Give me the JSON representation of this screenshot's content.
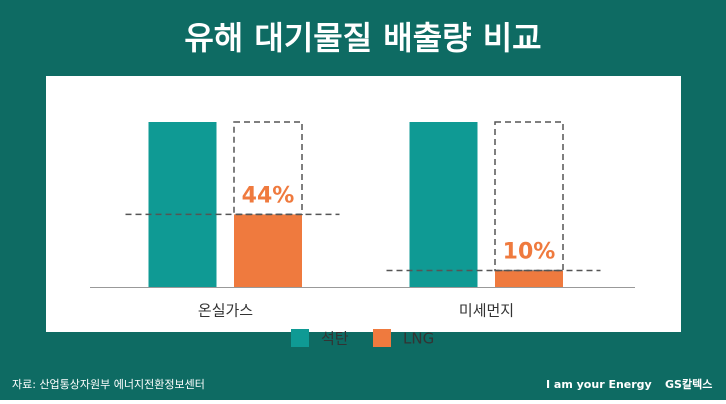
{
  "chart_data": {
    "type": "bar",
    "title": "유해 대기물질 배출량 비교",
    "categories": [
      "온실가스",
      "미세먼지"
    ],
    "series": [
      {
        "name": "석탄",
        "color": "#0f9a94",
        "values": [
          100,
          100
        ]
      },
      {
        "name": "LNG",
        "color": "#ef7a3e",
        "values": [
          44,
          10
        ],
        "value_labels": [
          "44%",
          "10%"
        ]
      }
    ],
    "ylim": [
      0,
      100
    ]
  },
  "source": "자료: 산업통상자원부 에너지전환정보센터",
  "brand": {
    "slogan": "I am your Energy",
    "name": "GS칼텍스"
  }
}
